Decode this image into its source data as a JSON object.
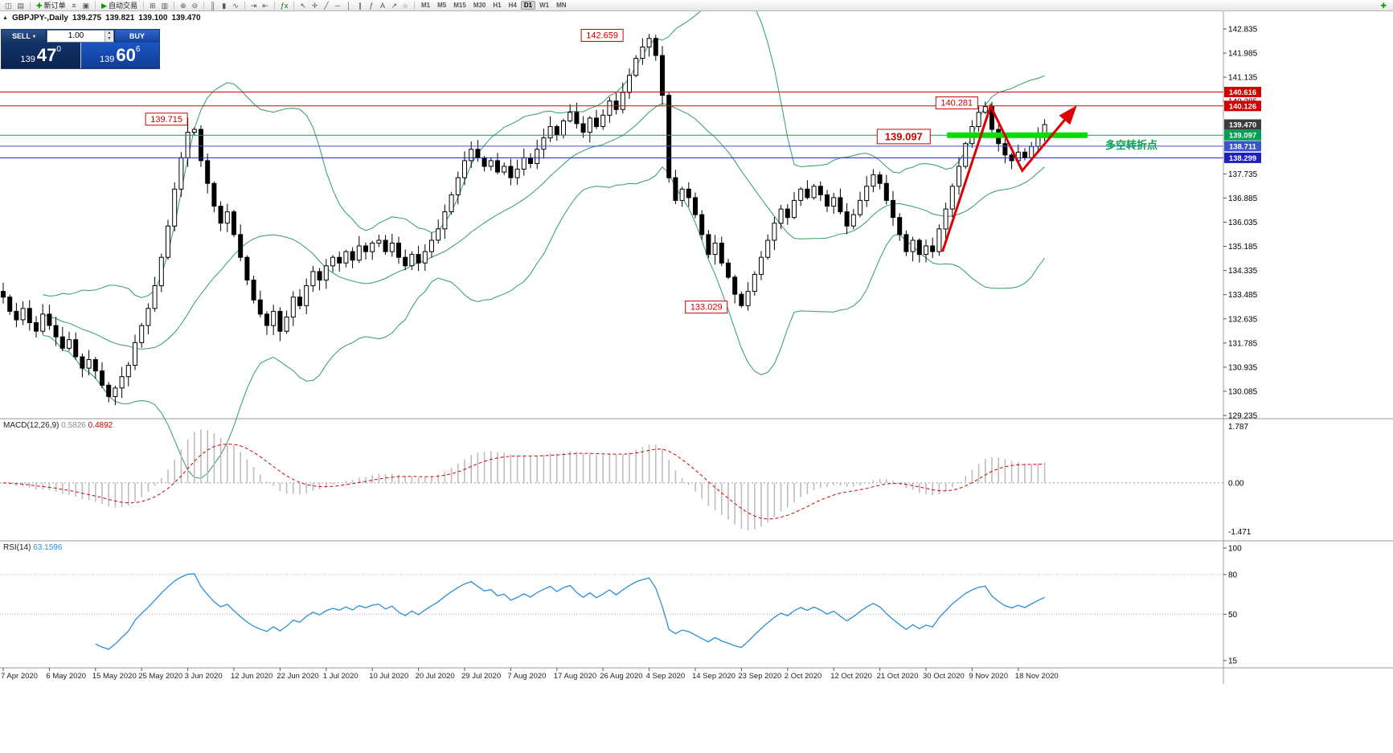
{
  "toolbar": {
    "buttons": [
      {
        "name": "new-chart",
        "glyph": "◫"
      },
      {
        "name": "profiles",
        "glyph": "▤"
      },
      {
        "sep": true
      },
      {
        "name": "new-order",
        "glyph": "✚",
        "glyph_color": "#009900",
        "label": "新订单"
      },
      {
        "name": "market-watch",
        "glyph": "≡"
      },
      {
        "name": "terminal",
        "glyph": "▣"
      },
      {
        "sep": true
      },
      {
        "name": "autotrading",
        "glyph": "▶",
        "glyph_color": "#009900",
        "label": "自动交易"
      },
      {
        "sep": true
      },
      {
        "name": "tile-windows",
        "glyph": "⊞"
      },
      {
        "name": "cascade-windows",
        "glyph": "▥"
      },
      {
        "sep": true
      },
      {
        "name": "zoom-in",
        "glyph": "⊕"
      },
      {
        "name": "zoom-out",
        "glyph": "⊖"
      },
      {
        "sep": true
      },
      {
        "name": "bar-chart-mode",
        "glyph": "║"
      },
      {
        "name": "candlestick-mode",
        "glyph": "▮"
      },
      {
        "name": "line-chart-mode",
        "glyph": "∿"
      },
      {
        "sep": true
      },
      {
        "name": "auto-scroll",
        "glyph": "⇥"
      },
      {
        "name": "chart-shift",
        "glyph": "⇤"
      },
      {
        "sep": true
      },
      {
        "name": "indicators-list",
        "glyph": "ƒx",
        "glyph_color": "#006600"
      },
      {
        "sep": true
      },
      {
        "name": "cursor",
        "glyph": "↖"
      },
      {
        "name": "crosshair",
        "glyph": "✛"
      },
      {
        "name": "trendline-tool",
        "glyph": "╱"
      },
      {
        "name": "horizontal-line-tool",
        "glyph": "─"
      },
      {
        "name": "vertical-line-tool",
        "glyph": "│"
      },
      {
        "name": "channel-tool",
        "glyph": "∥"
      },
      {
        "name": "fibonacci-tool",
        "glyph": "ƒ"
      },
      {
        "name": "text-tool",
        "glyph": "A"
      },
      {
        "name": "arrows-tool",
        "glyph": "↗"
      },
      {
        "name": "shapes-tool",
        "glyph": "○"
      },
      {
        "sep": true
      }
    ],
    "timeframes": [
      "M1",
      "M5",
      "M15",
      "M30",
      "H1",
      "H4",
      "D1",
      "W1",
      "MN"
    ],
    "active_timeframe": "D1",
    "right_buttons": [
      {
        "name": "add-indicator",
        "glyph": "✚",
        "glyph_color": "#009900"
      }
    ]
  },
  "chart_header": {
    "toggle_icon": "▲",
    "symbol": "GBPJPY-,Daily",
    "open": "139.275",
    "high": "139.821",
    "low": "139.100",
    "close": "139.470"
  },
  "trade_panel": {
    "sell_label": "SELL",
    "buy_label": "BUY",
    "caret_icon": "▾",
    "volume": "1.00",
    "spin_up": "▲",
    "spin_down": "▼",
    "sell_price": {
      "prefix": "139",
      "big": "47",
      "sup": "0"
    },
    "buy_price": {
      "prefix": "139",
      "big": "60",
      "sup": "6"
    }
  },
  "panes": {
    "macd": {
      "title": "MACD(12,26,9)",
      "main_value": "0.5826",
      "signal_value": "0.4892"
    },
    "rsi": {
      "title": "RSI(14)",
      "value": "63.1596"
    }
  },
  "colors": {
    "bands": "#2f9e63",
    "macd_hist": "#bdbdbd",
    "macd_signal": "#d40000",
    "rsi_line": "#2a8fdd",
    "candle_up": "#ffffff",
    "candle_down": "#000000"
  },
  "chart_data": {
    "type": "candlestick",
    "symbol": "GBPJPY",
    "timeframe": "Daily",
    "ylim": [
      129.235,
      142.835
    ],
    "y_ticks": [
      "142.835",
      "141.985",
      "141.135",
      "140.285",
      "137.735",
      "136.885",
      "136.035",
      "135.185",
      "134.335",
      "133.485",
      "132.635",
      "131.785",
      "130.935",
      "130.085",
      "129.235"
    ],
    "x_labels": [
      "7 Apr 2020",
      "6 May 2020",
      "15 May 2020",
      "25 May 2020",
      "3 Jun 2020",
      "12 Jun 2020",
      "22 Jun 2020",
      "1 Jul 2020",
      "10 Jul 2020",
      "20 Jul 2020",
      "29 Jul 2020",
      "7 Aug 2020",
      "17 Aug 2020",
      "26 Aug 2020",
      "4 Sep 2020",
      "14 Sep 2020",
      "23 Sep 2020",
      "2 Oct 2020",
      "12 Oct 2020",
      "21 Oct 2020",
      "30 Oct 2020",
      "9 Nov 2020",
      "18 Nov 2020"
    ],
    "candles": {
      "first_open": 133.6,
      "closes": [
        133.4,
        132.9,
        132.6,
        133.0,
        132.5,
        132.2,
        132.8,
        132.4,
        132.0,
        131.6,
        131.9,
        131.3,
        130.9,
        131.2,
        130.8,
        130.3,
        129.9,
        130.2,
        130.6,
        131.0,
        131.8,
        132.4,
        133.0,
        133.8,
        134.8,
        135.9,
        137.2,
        138.3,
        139.2,
        139.3,
        138.2,
        137.4,
        136.6,
        136.0,
        136.4,
        135.6,
        134.8,
        134.0,
        133.3,
        132.8,
        132.4,
        132.9,
        132.2,
        132.7,
        133.4,
        133.1,
        133.8,
        134.3,
        134.0,
        134.5,
        134.8,
        134.6,
        135.0,
        134.7,
        135.2,
        135.0,
        135.3,
        135.4,
        135.0,
        135.3,
        134.8,
        134.5,
        134.9,
        134.6,
        135.0,
        135.4,
        135.8,
        136.4,
        137.0,
        137.6,
        138.2,
        138.6,
        138.3,
        138.0,
        138.2,
        137.8,
        138.0,
        137.6,
        137.9,
        138.3,
        138.1,
        138.6,
        139.0,
        139.4,
        139.1,
        139.6,
        139.9,
        139.5,
        139.2,
        139.7,
        139.4,
        139.8,
        140.3,
        140.0,
        140.6,
        141.2,
        141.8,
        142.2,
        142.5,
        141.9,
        140.5,
        137.6,
        136.8,
        137.2,
        136.9,
        136.3,
        135.6,
        134.9,
        135.3,
        134.6,
        134.1,
        133.5,
        133.1,
        133.6,
        134.2,
        134.8,
        135.4,
        136.0,
        136.5,
        136.2,
        136.8,
        137.2,
        136.9,
        137.3,
        137.0,
        136.6,
        136.9,
        136.4,
        135.9,
        136.3,
        136.8,
        137.3,
        137.7,
        137.4,
        136.8,
        136.2,
        135.6,
        135.0,
        135.4,
        134.9,
        135.2,
        135.0,
        135.8,
        136.5,
        137.3,
        138.0,
        138.8,
        139.4,
        139.9,
        140.1,
        139.3,
        138.8,
        138.4,
        138.2,
        138.5,
        138.3,
        138.7,
        139.1,
        139.47
      ],
      "overrides": {
        "highs": {
          "28": 139.715,
          "98": 142.659,
          "149": 140.281
        },
        "lows": {
          "16": 129.7,
          "112": 133.029,
          "153": 137.9
        }
      }
    },
    "indicators": {
      "bollinger": {
        "period": 20,
        "deviation": 2
      },
      "macd": {
        "fast": 12,
        "slow": 26,
        "signal": 9,
        "scale_labels": [
          "1.787",
          "0.00",
          "-1.471"
        ]
      },
      "rsi": {
        "period": 14,
        "levels": [
          80,
          50
        ],
        "scale_labels": [
          "100",
          "80",
          "50",
          "15"
        ]
      }
    },
    "objects": {
      "hlines": [
        {
          "price": 140.616,
          "color": "#d40000",
          "width": 1
        },
        {
          "price": 140.126,
          "color": "#d40000",
          "width": 1
        },
        {
          "price": 139.097,
          "color": "#00a050",
          "width": 1
        },
        {
          "price": 138.711,
          "color": "#3a55c8",
          "width": 1
        },
        {
          "price": 138.299,
          "color": "#1e1ec8",
          "width": 1
        }
      ],
      "segment": {
        "price": 139.097,
        "i0": 143.2,
        "i1": 164.5,
        "color": "#00dd00",
        "width": 7
      },
      "zigzag": {
        "color": "#dd0000",
        "width": 3,
        "points": [
          {
            "i": 142.5,
            "p": 135.0
          },
          {
            "i": 149.8,
            "p": 140.12
          },
          {
            "i": 154.6,
            "p": 137.85
          },
          {
            "i": 162.2,
            "p": 139.95
          }
        ]
      },
      "callouts": [
        {
          "text": "142.659",
          "i": 87.7,
          "p": 142.61,
          "big": false
        },
        {
          "text": "139.715",
          "i": 21.6,
          "p": 139.66,
          "big": false
        },
        {
          "text": "140.281",
          "i": 141.5,
          "p": 140.23,
          "big": false
        },
        {
          "text": "139.097",
          "i": 132.6,
          "p": 139.05,
          "big": true
        },
        {
          "text": "133.029",
          "i": 103.5,
          "p": 133.05,
          "big": false
        }
      ],
      "text_label": {
        "text": "多空转折点",
        "i": 167.2,
        "p": 138.62,
        "color": "#00a550"
      }
    },
    "price_badges": [
      {
        "value": "140.616",
        "color": "#d40000"
      },
      {
        "value": "140.126",
        "color": "#d40000"
      },
      {
        "value": "139.470",
        "color": "#3c3c3c"
      },
      {
        "value": "139.097",
        "color": "#00a050"
      },
      {
        "value": "138.711",
        "color": "#3a55c8"
      },
      {
        "value": "138.299",
        "color": "#1e1ec8"
      }
    ]
  }
}
